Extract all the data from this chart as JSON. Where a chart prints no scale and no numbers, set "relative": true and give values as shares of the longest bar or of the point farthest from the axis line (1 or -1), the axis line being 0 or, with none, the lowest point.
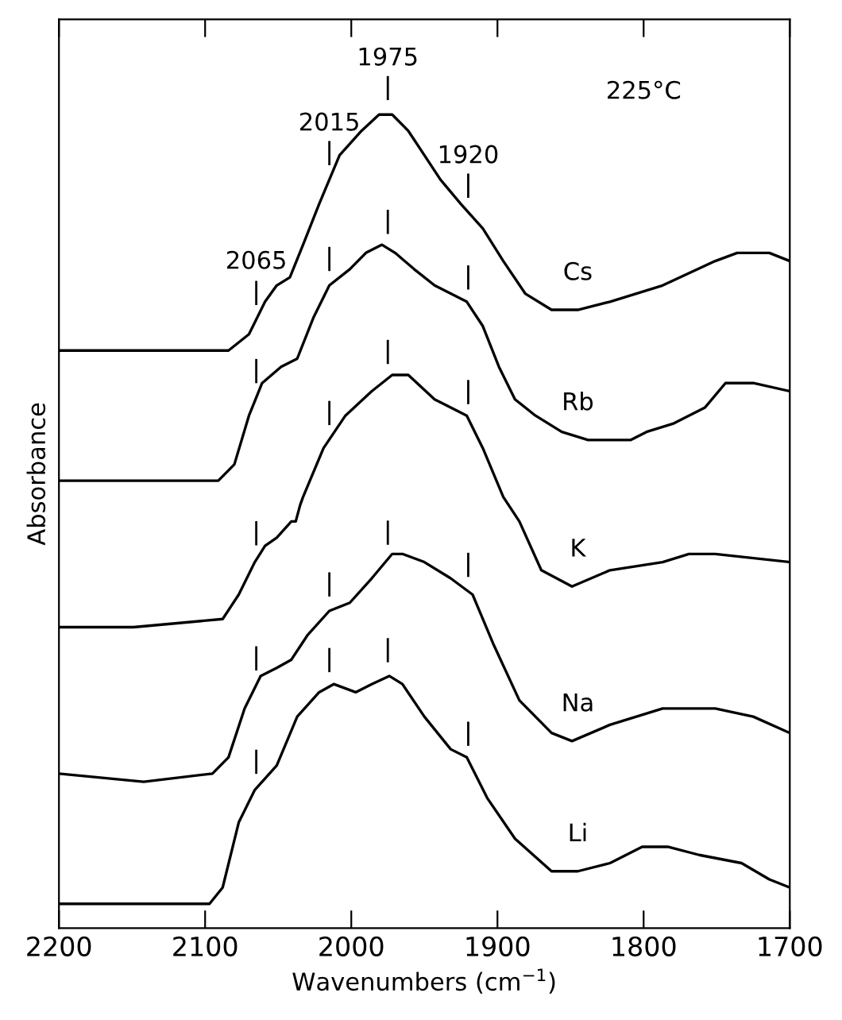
{
  "chart_data": {
    "type": "line",
    "relative": true,
    "xlabel": "Wavenumbers (cm$^{−1}$)",
    "ylabel": "Absorbance",
    "xlim": [
      2200,
      1700
    ],
    "xticks": [
      2200,
      2100,
      2000,
      1900,
      1800,
      1700
    ],
    "grid": false,
    "legend": false,
    "series": [
      {
        "name": "Cs",
        "color": "#000000",
        "x": [
          2200,
          2149,
          2084,
          2070,
          2059,
          2051,
          2042,
          2033,
          2022,
          2008,
          1993,
          1981,
          1972,
          1961,
          1950,
          1939,
          1925,
          1910,
          1896,
          1881,
          1863,
          1845,
          1823,
          1787,
          1751,
          1736,
          1725,
          1714,
          1700
        ],
        "values": [
          0.71,
          0.71,
          0.71,
          0.73,
          0.77,
          0.79,
          0.8,
          0.84,
          0.89,
          0.95,
          0.98,
          1.0,
          1.0,
          0.98,
          0.95,
          0.92,
          0.89,
          0.86,
          0.82,
          0.78,
          0.76,
          0.76,
          0.77,
          0.79,
          0.82,
          0.83,
          0.83,
          0.83,
          0.82
        ]
      },
      {
        "name": "Rb",
        "color": "#000000",
        "x": [
          2200,
          2149,
          2091,
          2080,
          2070,
          2061,
          2048,
          2037,
          2026,
          2015,
          2001,
          1990,
          1979,
          1970,
          1957,
          1943,
          1932,
          1921,
          1910,
          1899,
          1888,
          1874,
          1856,
          1838,
          1809,
          1798,
          1780,
          1758,
          1744,
          1725,
          1700
        ],
        "values": [
          0.55,
          0.55,
          0.55,
          0.57,
          0.63,
          0.67,
          0.69,
          0.7,
          0.75,
          0.79,
          0.81,
          0.83,
          0.84,
          0.83,
          0.81,
          0.79,
          0.78,
          0.77,
          0.74,
          0.69,
          0.65,
          0.63,
          0.61,
          0.6,
          0.6,
          0.61,
          0.62,
          0.64,
          0.67,
          0.67,
          0.66
        ]
      },
      {
        "name": "K",
        "color": "#000000",
        "x": [
          2200,
          2149,
          2088,
          2077,
          2066,
          2059,
          2051,
          2046,
          2041,
          2038,
          2035,
          2033,
          2019,
          2004,
          1986,
          1972,
          1961,
          1943,
          1921,
          1910,
          1896,
          1885,
          1870,
          1849,
          1823,
          1787,
          1769,
          1751,
          1700
        ],
        "values": [
          0.37,
          0.37,
          0.38,
          0.41,
          0.45,
          0.47,
          0.48,
          0.49,
          0.5,
          0.5,
          0.52,
          0.53,
          0.59,
          0.63,
          0.66,
          0.68,
          0.68,
          0.65,
          0.63,
          0.59,
          0.53,
          0.5,
          0.44,
          0.42,
          0.44,
          0.45,
          0.46,
          0.46,
          0.45
        ]
      },
      {
        "name": "Na",
        "color": "#000000",
        "x": [
          2200,
          2142,
          2095,
          2084,
          2073,
          2062,
          2051,
          2041,
          2030,
          2015,
          2001,
          1986,
          1972,
          1965,
          1950,
          1932,
          1917,
          1903,
          1885,
          1863,
          1849,
          1823,
          1787,
          1751,
          1725,
          1700
        ],
        "values": [
          0.19,
          0.18,
          0.19,
          0.21,
          0.27,
          0.31,
          0.32,
          0.33,
          0.36,
          0.39,
          0.4,
          0.43,
          0.46,
          0.46,
          0.45,
          0.43,
          0.41,
          0.35,
          0.28,
          0.24,
          0.23,
          0.25,
          0.27,
          0.27,
          0.26,
          0.24
        ]
      },
      {
        "name": "Li",
        "color": "#000000",
        "x": [
          2200,
          2149,
          2097,
          2088,
          2077,
          2066,
          2051,
          2037,
          2022,
          2012,
          1997,
          1986,
          1974,
          1965,
          1950,
          1932,
          1921,
          1907,
          1888,
          1863,
          1845,
          1823,
          1801,
          1783,
          1762,
          1733,
          1714,
          1700
        ],
        "values": [
          0.03,
          0.03,
          0.03,
          0.05,
          0.13,
          0.17,
          0.2,
          0.26,
          0.29,
          0.3,
          0.29,
          0.3,
          0.31,
          0.3,
          0.26,
          0.22,
          0.21,
          0.16,
          0.11,
          0.07,
          0.07,
          0.08,
          0.1,
          0.1,
          0.09,
          0.08,
          0.06,
          0.05
        ]
      }
    ],
    "annotations": [
      {
        "text": "2065",
        "x": 2065,
        "y": 0.75
      },
      {
        "text": "2015",
        "x": 2015,
        "y": 0.92
      },
      {
        "text": "1975",
        "x": 1975,
        "y": 1.0
      },
      {
        "text": "1920",
        "x": 1920,
        "y": 0.88
      },
      "225°C"
    ]
  }
}
